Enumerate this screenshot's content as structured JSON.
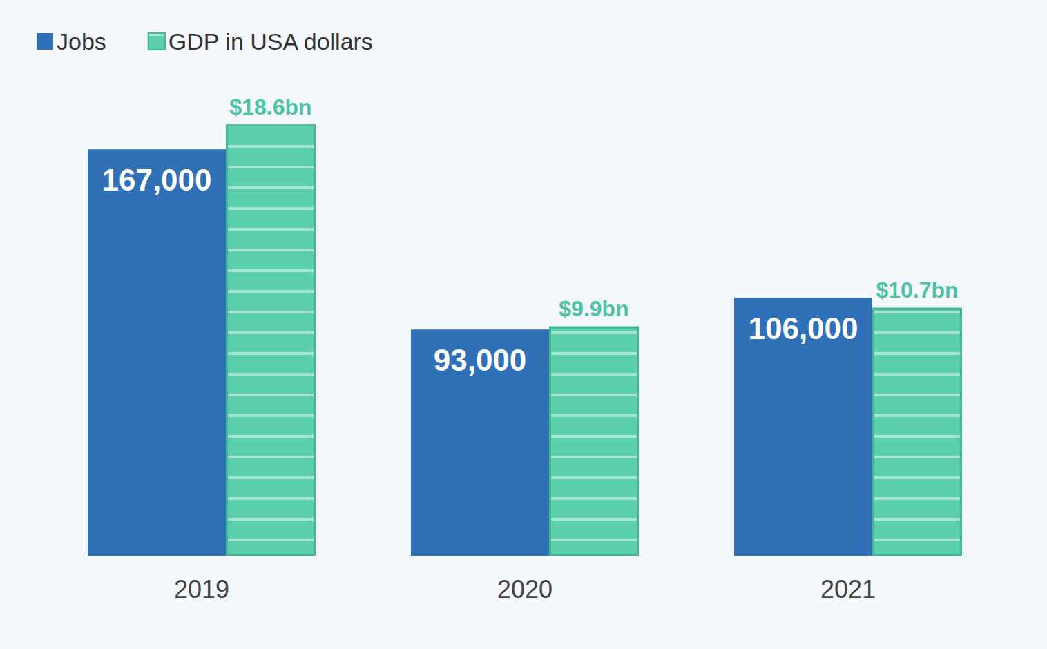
{
  "chart_data": {
    "type": "bar",
    "categories": [
      "2019",
      "2020",
      "2021"
    ],
    "series": [
      {
        "name": "Jobs",
        "color": "#2f70b6",
        "values": [
          167000,
          93000,
          106000
        ],
        "value_labels": [
          "167,000",
          "93,000",
          "106,000"
        ]
      },
      {
        "name": "GDP in USA dollars",
        "color": "#5ccfae",
        "axis": "y2",
        "values": [
          18.6,
          9.9,
          10.7
        ],
        "value_labels": [
          "$18.6bn",
          "$9.9bn",
          "$10.7bn"
        ]
      }
    ],
    "ylim": [
      0,
      200000
    ],
    "y2lim": [
      0,
      21
    ],
    "grid": false,
    "legend": "top-left",
    "data_labels": true,
    "tick_labels": "x"
  }
}
